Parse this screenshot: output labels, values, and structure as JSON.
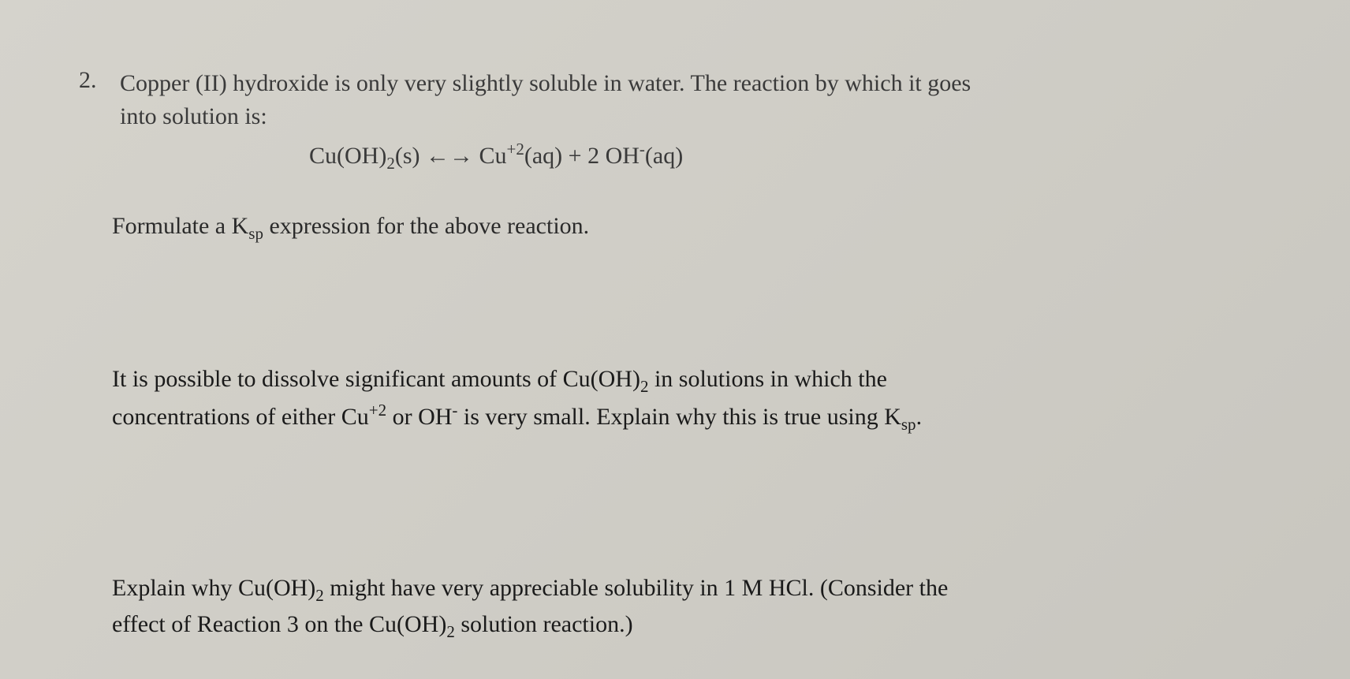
{
  "document": {
    "background_color": "#d2d0c9",
    "text_color": "#2a2a2a",
    "font_family": "Times New Roman",
    "base_fontsize": 30
  },
  "question": {
    "number": "2.",
    "intro_part1": "Copper (II) hydroxide is only very slightly soluble in water.  The reaction by which it goes",
    "intro_part2": "into solution is:",
    "equation": {
      "lhs_compound": "Cu(OH)",
      "lhs_sub": "2",
      "lhs_state": "(s)",
      "arrow_left": "←",
      "arrow_right": "→",
      "rhs1_compound": "Cu",
      "rhs1_sup": "+2",
      "rhs1_state": "(aq)",
      "plus": " + ",
      "rhs2_coef": "2 ",
      "rhs2_compound": "OH",
      "rhs2_sup": "-",
      "rhs2_state": "(aq)"
    },
    "formulate_part1": "Formulate a K",
    "formulate_sub": "sp",
    "formulate_part2": " expression for the above reaction.",
    "para2_line1_a": "It is possible to dissolve significant amounts of Cu(OH)",
    "para2_line1_sub": "2",
    "para2_line1_b": " in solutions in which the",
    "para2_line2_a": "concentrations of either Cu",
    "para2_line2_sup": "+2",
    "para2_line2_b": " or OH",
    "para2_line2_sup2": "-",
    "para2_line2_c": " is very small.  Explain why this is true using K",
    "para2_line2_sub": "sp",
    "para2_line2_d": ".",
    "para3_line1_a": "Explain why Cu(OH)",
    "para3_line1_sub": "2",
    "para3_line1_b": " might have very appreciable solubility in 1 M HCl.  (Consider the",
    "para3_line2_a": "effect of Reaction 3 on the Cu(OH)",
    "para3_line2_sub": "2",
    "para3_line2_b": " solution reaction.)"
  }
}
